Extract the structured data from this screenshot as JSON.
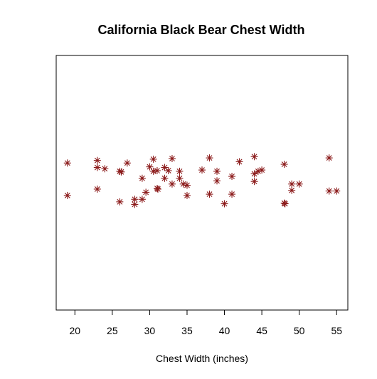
{
  "chart_data": {
    "type": "scatter",
    "title": "California Black Bear Chest Width",
    "xlabel": "Chest Width (inches)",
    "ylabel": "",
    "xlim": [
      17.5,
      56.5
    ],
    "ylim": [
      -1,
      1
    ],
    "xticks": [
      20,
      25,
      30,
      35,
      40,
      45,
      50,
      55
    ],
    "grid": false,
    "legend": "none",
    "marker": "asterisk",
    "color": "#8B1A1A",
    "series": [
      {
        "values": [
          {
            "x": 19,
            "y": 0.155
          },
          {
            "x": 19,
            "y": -0.1
          },
          {
            "x": 23,
            "y": 0.175
          },
          {
            "x": 23,
            "y": 0.12
          },
          {
            "x": 23,
            "y": -0.05
          },
          {
            "x": 24,
            "y": 0.11
          },
          {
            "x": 26,
            "y": 0.09
          },
          {
            "x": 26.2,
            "y": 0.085
          },
          {
            "x": 26,
            "y": -0.15
          },
          {
            "x": 27,
            "y": 0.155
          },
          {
            "x": 28,
            "y": -0.17
          },
          {
            "x": 28,
            "y": -0.13
          },
          {
            "x": 29,
            "y": -0.13
          },
          {
            "x": 29,
            "y": 0.035
          },
          {
            "x": 29.5,
            "y": -0.075
          },
          {
            "x": 30,
            "y": 0.125
          },
          {
            "x": 30.5,
            "y": 0.185
          },
          {
            "x": 30.5,
            "y": 0.09
          },
          {
            "x": 31,
            "y": 0.095
          },
          {
            "x": 31,
            "y": -0.045
          },
          {
            "x": 31.1,
            "y": -0.05
          },
          {
            "x": 32,
            "y": 0.12
          },
          {
            "x": 32,
            "y": 0.035
          },
          {
            "x": 32.5,
            "y": 0.095
          },
          {
            "x": 33,
            "y": 0.19
          },
          {
            "x": 33,
            "y": -0.01
          },
          {
            "x": 34,
            "y": 0.09
          },
          {
            "x": 34,
            "y": 0.035
          },
          {
            "x": 34.5,
            "y": -0.01
          },
          {
            "x": 35,
            "y": -0.02
          },
          {
            "x": 35,
            "y": -0.1
          },
          {
            "x": 37,
            "y": 0.1
          },
          {
            "x": 38,
            "y": 0.195
          },
          {
            "x": 38,
            "y": -0.09
          },
          {
            "x": 39,
            "y": 0.09
          },
          {
            "x": 39,
            "y": 0.015
          },
          {
            "x": 40,
            "y": -0.165
          },
          {
            "x": 41,
            "y": 0.05
          },
          {
            "x": 41,
            "y": -0.09
          },
          {
            "x": 42,
            "y": 0.165
          },
          {
            "x": 44,
            "y": 0.205
          },
          {
            "x": 44,
            "y": 0.07
          },
          {
            "x": 44,
            "y": 0.01
          },
          {
            "x": 44.5,
            "y": 0.09
          },
          {
            "x": 45,
            "y": 0.1
          },
          {
            "x": 48,
            "y": 0.145
          },
          {
            "x": 48,
            "y": -0.16
          },
          {
            "x": 48.1,
            "y": -0.165
          },
          {
            "x": 49,
            "y": -0.01
          },
          {
            "x": 49,
            "y": -0.06
          },
          {
            "x": 50,
            "y": -0.01
          },
          {
            "x": 54,
            "y": 0.195
          },
          {
            "x": 54,
            "y": -0.065
          },
          {
            "x": 55,
            "y": -0.065
          }
        ]
      }
    ]
  }
}
